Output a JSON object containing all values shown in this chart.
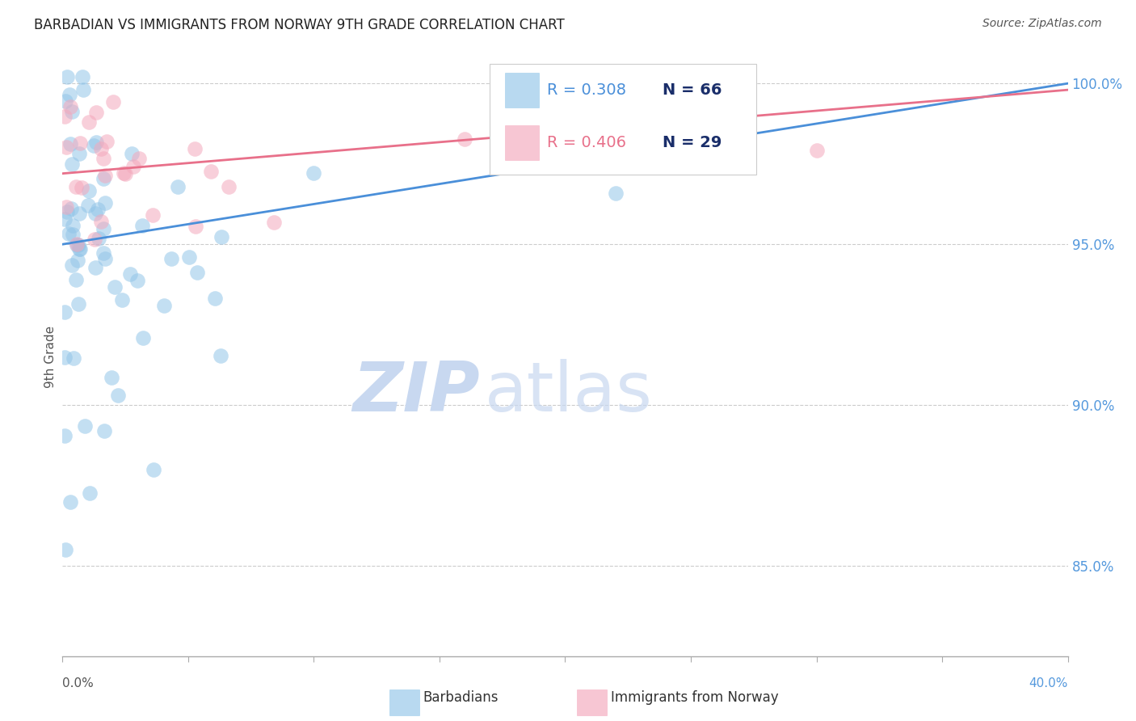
{
  "title": "BARBADIAN VS IMMIGRANTS FROM NORWAY 9TH GRADE CORRELATION CHART",
  "source": "Source: ZipAtlas.com",
  "ylabel": "9th Grade",
  "ylabel_right_labels": [
    "100.0%",
    "95.0%",
    "90.0%",
    "85.0%"
  ],
  "ylabel_right_values": [
    1.0,
    0.95,
    0.9,
    0.85
  ],
  "xmin": 0.0,
  "xmax": 0.4,
  "ymin": 0.822,
  "ymax": 1.008,
  "blue_R": 0.308,
  "blue_N": 66,
  "pink_R": 0.406,
  "pink_N": 29,
  "blue_color": "#92C5E8",
  "pink_color": "#F4A8BC",
  "blue_line_color": "#4A8FD9",
  "pink_line_color": "#E8708A",
  "legend_N_color": "#1A2E6A",
  "watermark_zip_color": "#C8D8F0",
  "watermark_atlas_color": "#C8D8F0",
  "background": "#ffffff",
  "grid_color": "#cccccc",
  "spine_color": "#aaaaaa",
  "right_tick_color": "#5599DD",
  "xlabel_color_left": "#555555",
  "xlabel_color_right": "#5599DD"
}
